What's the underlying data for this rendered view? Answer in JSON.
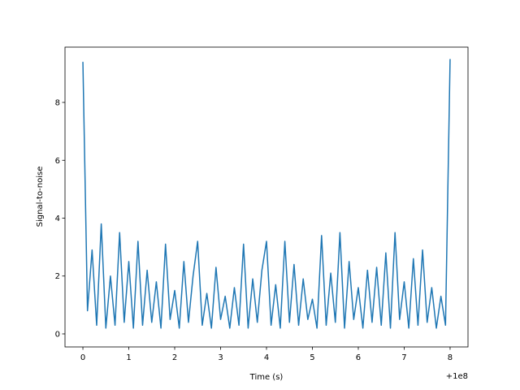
{
  "chart_data": {
    "type": "line",
    "xlabel": "Time (s)",
    "ylabel": "Signal-to-noise",
    "x_offset_label": "+1e8",
    "x": [
      0,
      0.1,
      0.2,
      0.3,
      0.4,
      0.5,
      0.6,
      0.7,
      0.8,
      0.9,
      1.0,
      1.1,
      1.2,
      1.3,
      1.4,
      1.5,
      1.6,
      1.7,
      1.8,
      1.9,
      2.0,
      2.1,
      2.2,
      2.3,
      2.4,
      2.5,
      2.6,
      2.7,
      2.8,
      2.9,
      3.0,
      3.1,
      3.2,
      3.3,
      3.4,
      3.5,
      3.6,
      3.7,
      3.8,
      3.9,
      4.0,
      4.1,
      4.2,
      4.3,
      4.4,
      4.5,
      4.6,
      4.7,
      4.8,
      4.9,
      5.0,
      5.1,
      5.2,
      5.3,
      5.4,
      5.5,
      5.6,
      5.7,
      5.8,
      5.9,
      6.0,
      6.1,
      6.2,
      6.3,
      6.4,
      6.5,
      6.6,
      6.7,
      6.8,
      6.9,
      7.0,
      7.1,
      7.2,
      7.3,
      7.4,
      7.5,
      7.6,
      7.7,
      7.8,
      7.9,
      8.0
    ],
    "series": [
      {
        "color": "#1f77b4",
        "values": [
          9.4,
          0.8,
          2.9,
          0.3,
          3.8,
          0.2,
          2.0,
          0.3,
          3.5,
          0.4,
          2.5,
          0.2,
          3.2,
          0.3,
          2.2,
          0.4,
          1.8,
          0.2,
          3.1,
          0.5,
          1.5,
          0.2,
          2.5,
          0.4,
          2.0,
          3.2,
          0.3,
          1.4,
          0.2,
          2.3,
          0.5,
          1.3,
          0.2,
          1.6,
          0.3,
          3.1,
          0.2,
          1.9,
          0.4,
          2.2,
          3.2,
          0.3,
          1.7,
          0.2,
          3.2,
          0.4,
          2.4,
          0.3,
          1.9,
          0.5,
          1.2,
          0.2,
          3.4,
          0.3,
          2.1,
          0.4,
          3.5,
          0.2,
          2.5,
          0.5,
          1.6,
          0.2,
          2.2,
          0.4,
          2.3,
          0.3,
          2.8,
          0.2,
          3.5,
          0.5,
          1.8,
          0.2,
          2.6,
          0.3,
          2.9,
          0.4,
          1.6,
          0.2,
          1.3,
          0.3,
          9.5
        ]
      }
    ],
    "xlim": [
      -0.39,
      8.39
    ],
    "ylim": [
      -0.45,
      9.91
    ],
    "xticks": [
      0,
      1,
      2,
      3,
      4,
      5,
      6,
      7,
      8
    ],
    "yticks": [
      0,
      2,
      4,
      6,
      8
    ]
  }
}
